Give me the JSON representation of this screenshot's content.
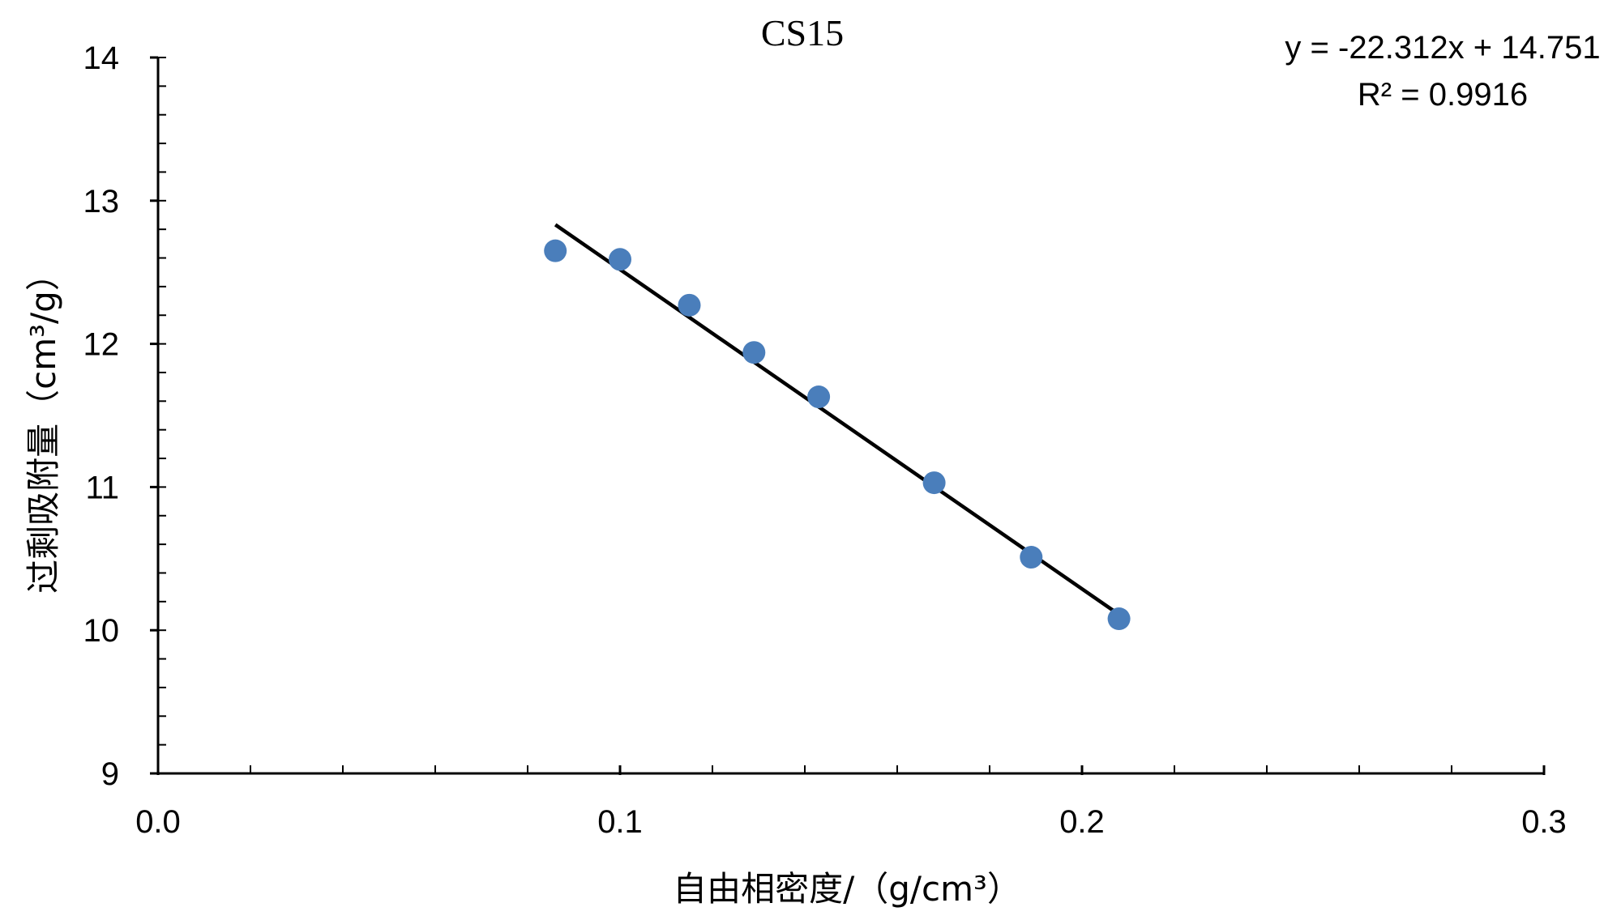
{
  "chart_data": {
    "type": "scatter",
    "title": "CS15",
    "xlabel": "自由相密度/（g/cm³）",
    "ylabel": "过剩吸附量（cm³/g）",
    "xlim": [
      0.0,
      0.3
    ],
    "ylim": [
      9,
      14
    ],
    "x_ticks": [
      "0.0",
      "0.1",
      "0.2",
      "0.3"
    ],
    "y_ticks": [
      "9",
      "10",
      "11",
      "12",
      "13",
      "14"
    ],
    "x_minor_step": 0.02,
    "y_minor_step": 0.2,
    "grid": false,
    "point_color": "#4a7ebb",
    "line_color": "#000000",
    "points": [
      {
        "x": 0.086,
        "y": 12.65
      },
      {
        "x": 0.1,
        "y": 12.59
      },
      {
        "x": 0.115,
        "y": 12.27
      },
      {
        "x": 0.129,
        "y": 11.94
      },
      {
        "x": 0.143,
        "y": 11.63
      },
      {
        "x": 0.168,
        "y": 11.03
      },
      {
        "x": 0.189,
        "y": 10.51
      },
      {
        "x": 0.208,
        "y": 10.08
      }
    ],
    "trendline": {
      "type": "linear",
      "slope": -22.312,
      "intercept": 14.751,
      "x_range": [
        0.086,
        0.208
      ],
      "equation": "y = -22.312x + 14.751",
      "r2_label": "R² = 0.9916"
    }
  }
}
